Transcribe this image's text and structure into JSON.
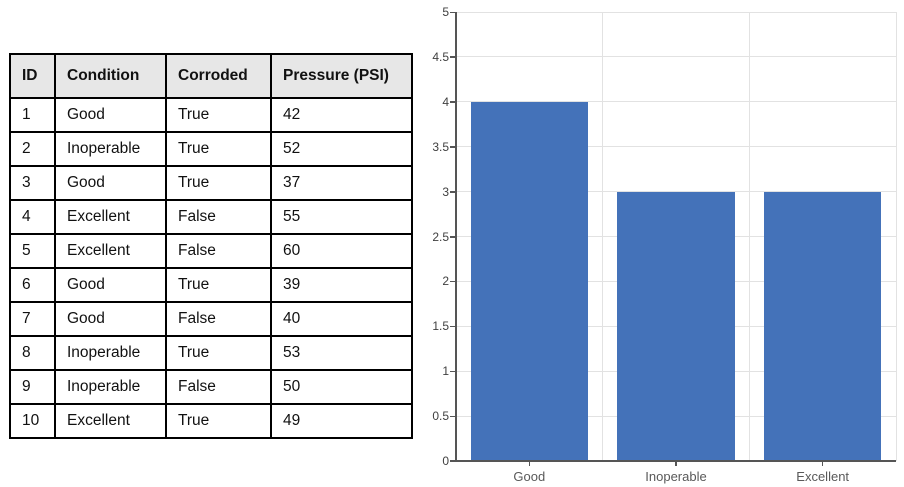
{
  "table": {
    "columns": [
      "ID",
      "Condition",
      "Corroded",
      "Pressure (PSI)"
    ],
    "rows": [
      [
        "1",
        "Good",
        "True",
        "42"
      ],
      [
        "2",
        "Inoperable",
        "True",
        "52"
      ],
      [
        "3",
        "Good",
        "True",
        "37"
      ],
      [
        "4",
        "Excellent",
        "False",
        "55"
      ],
      [
        "5",
        "Excellent",
        "False",
        "60"
      ],
      [
        "6",
        "Good",
        "True",
        "39"
      ],
      [
        "7",
        "Good",
        "False",
        "40"
      ],
      [
        "8",
        "Inoperable",
        "True",
        "53"
      ],
      [
        "9",
        "Inoperable",
        "False",
        "50"
      ],
      [
        "10",
        "Excellent",
        "True",
        "49"
      ]
    ],
    "header_bg": "#e7e7e7",
    "border_color": "#000000",
    "text_color": "#111111"
  },
  "chart_data": {
    "type": "bar",
    "categories": [
      "Good",
      "Inoperable",
      "Excellent"
    ],
    "values": [
      4,
      3,
      3
    ],
    "title": "",
    "xlabel": "",
    "ylabel": "",
    "ylim": [
      0,
      5
    ],
    "ytick_step": 0.5,
    "ytick_labels": [
      "0",
      "0.5",
      "1",
      "1.5",
      "2",
      "2.5",
      "3",
      "3.5",
      "4",
      "4.5",
      "5"
    ],
    "grid": true,
    "legend": false,
    "bar_color": "#4472b9",
    "gridline_color": "#e2e2e2",
    "axis_color": "#555555",
    "ytick_label_color": "#404040",
    "xtick_label_color": "#595959"
  }
}
